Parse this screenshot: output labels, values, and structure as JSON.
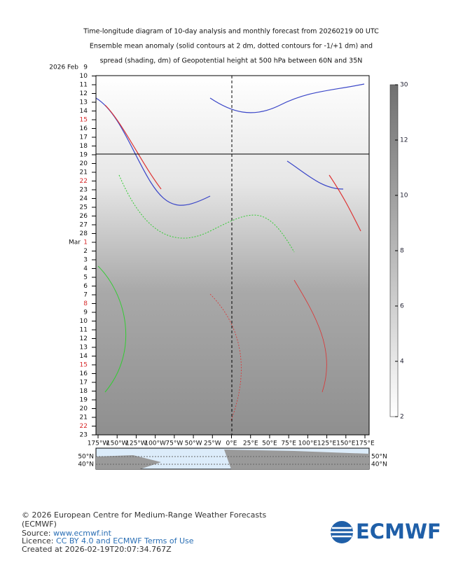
{
  "title_lines": [
    "Time-longitude diagram of 10-day analysis and monthly forecast from 20260219 00 UTC",
    "Ensemble mean anomaly (solid contours at 2 dm, dotted contours for -1/+1 dm) and",
    "spread (shading, dm) of Geopotential height at 500 hPa between 60N and 35N"
  ],
  "date_labels": [
    {
      "prefix": "2026 Feb",
      "day": "9"
    },
    {
      "day": "10"
    },
    {
      "day": "11"
    },
    {
      "day": "12"
    },
    {
      "day": "13"
    },
    {
      "day": "14"
    },
    {
      "day": "15",
      "color": "#d62728"
    },
    {
      "day": "16"
    },
    {
      "day": "17"
    },
    {
      "day": "18"
    },
    {
      "day": "19"
    },
    {
      "day": "20"
    },
    {
      "day": "21"
    },
    {
      "day": "22",
      "color": "#d62728"
    },
    {
      "day": "23"
    },
    {
      "day": "24"
    },
    {
      "day": "25"
    },
    {
      "day": "26"
    },
    {
      "day": "27"
    },
    {
      "day": "28"
    },
    {
      "prefix": "Mar",
      "day": "1",
      "color": "#d62728"
    },
    {
      "day": "2"
    },
    {
      "day": "3"
    },
    {
      "day": "4"
    },
    {
      "day": "5"
    },
    {
      "day": "6"
    },
    {
      "day": "7"
    },
    {
      "day": "8",
      "color": "#d62728"
    },
    {
      "day": "9"
    },
    {
      "day": "10"
    },
    {
      "day": "11"
    },
    {
      "day": "12"
    },
    {
      "day": "13"
    },
    {
      "day": "14"
    },
    {
      "day": "15",
      "color": "#d62728"
    },
    {
      "day": "16"
    },
    {
      "day": "17"
    },
    {
      "day": "18"
    },
    {
      "day": "19"
    },
    {
      "day": "20"
    },
    {
      "day": "21"
    },
    {
      "day": "22",
      "color": "#d62728"
    },
    {
      "day": "23"
    }
  ],
  "longitude_labels": [
    "175°W",
    "150°W",
    "125°W",
    "100°W",
    "75°W",
    "50°W",
    "25°W",
    "0°E",
    "25°E",
    "50°E",
    "75°E",
    "100°E",
    "125°E",
    "150°E",
    "175°E"
  ],
  "colorbar_labels": [
    "30",
    "12",
    "10",
    "8",
    "6",
    "4",
    "2"
  ],
  "map_labels": [
    "50°N",
    "40°N"
  ],
  "footer": {
    "copyright": "© 2026 European Centre for Medium-Range Weather Forecasts",
    "org": "(ECMWF)",
    "source_prefix": "Source: ",
    "source_link": "www.ecmwf.int",
    "licence_prefix": "Licence: ",
    "licence_link": "CC BY 4.0 and ECMWF Terms of Use",
    "created": "Created at 2026-02-19T20:07:34.767Z"
  },
  "logo": "ECMWF"
}
